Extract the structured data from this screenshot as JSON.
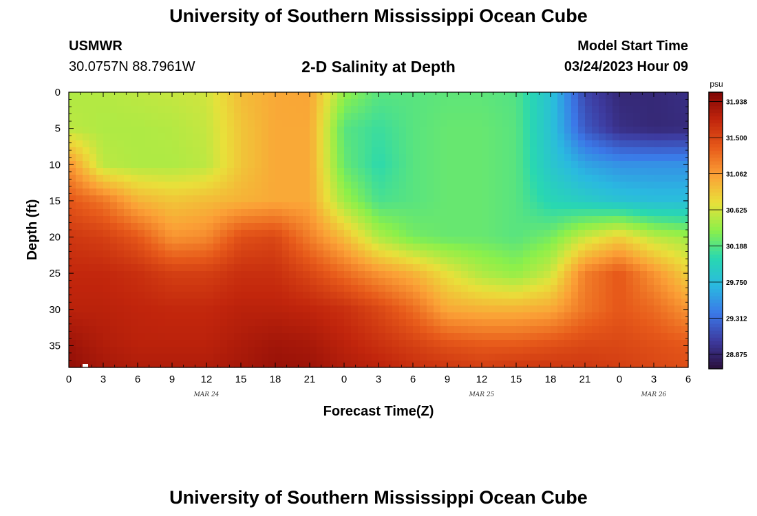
{
  "header": {
    "title": "University of Southern Mississippi Ocean Cube",
    "station": "USMWR",
    "coordinates": "30.0757N  88.7961W",
    "chart_title": "2-D Salinity at Depth",
    "model_start_label": "Model Start Time",
    "model_start_value": "03/24/2023 Hour 09"
  },
  "footer": {
    "title": "University of Southern Mississippi Ocean Cube"
  },
  "chart_data": {
    "type": "heatmap",
    "title": "2-D Salinity at Depth",
    "xlabel": "Forecast Time(Z)",
    "ylabel": "Depth (ft)",
    "x_tick_labels": [
      "0",
      "3",
      "6",
      "9",
      "12",
      "15",
      "18",
      "21",
      "0",
      "3",
      "6",
      "9",
      "12",
      "15",
      "18",
      "21",
      "0",
      "3",
      "6"
    ],
    "x_hours": [
      0,
      3,
      6,
      9,
      12,
      15,
      18,
      21,
      24,
      27,
      30,
      33,
      36,
      39,
      42,
      45,
      48,
      51,
      54
    ],
    "x_range_hours": [
      0,
      54
    ],
    "date_labels": [
      {
        "label": "MAR 24",
        "hour": 12
      },
      {
        "label": "MAR 25",
        "hour": 36
      },
      {
        "label": "MAR 26",
        "hour": 51
      }
    ],
    "y_ticks": [
      0,
      5,
      10,
      15,
      20,
      25,
      30,
      35
    ],
    "y_range_ft": [
      0,
      38
    ],
    "y_inverted": true,
    "colorbar": {
      "unit": "psu",
      "ticks": [
        "31.938",
        "31.500",
        "31.062",
        "30.625",
        "30.188",
        "29.750",
        "29.312",
        "28.875"
      ],
      "range": [
        28.7,
        32.05
      ],
      "colors": [
        "#2a0f3c",
        "#3d3a9e",
        "#3b78e8",
        "#2ab9e0",
        "#29d8b0",
        "#8cf04a",
        "#e9e03a",
        "#fba036",
        "#e75a1a",
        "#c1250c",
        "#7f0505"
      ]
    },
    "layers": [
      {
        "depth_ft": 0,
        "salinity": [
          30.5,
          30.52,
          30.55,
          30.58,
          30.62,
          30.9,
          31.0,
          31.02,
          30.4,
          30.2,
          30.2,
          30.22,
          30.22,
          30.18,
          29.8,
          29.1,
          28.9,
          28.9,
          28.95
        ]
      },
      {
        "depth_ft": 5,
        "salinity": [
          30.55,
          30.5,
          30.5,
          30.52,
          30.58,
          30.85,
          31.0,
          31.0,
          30.2,
          30.1,
          30.2,
          30.25,
          30.25,
          30.2,
          29.8,
          29.2,
          28.95,
          28.9,
          28.92
        ]
      },
      {
        "depth_ft": 10,
        "salinity": [
          31.1,
          30.55,
          30.5,
          30.5,
          30.55,
          30.85,
          31.0,
          31.0,
          30.25,
          30.05,
          30.2,
          30.25,
          30.25,
          30.2,
          29.85,
          29.6,
          29.5,
          29.5,
          29.5
        ]
      },
      {
        "depth_ft": 15,
        "salinity": [
          31.4,
          31.25,
          30.95,
          30.85,
          30.9,
          30.95,
          31.0,
          31.0,
          30.45,
          30.15,
          30.2,
          30.25,
          30.25,
          30.2,
          30.0,
          29.9,
          29.8,
          29.75,
          29.75
        ]
      },
      {
        "depth_ft": 20,
        "salinity": [
          31.6,
          31.55,
          31.4,
          31.1,
          31.15,
          31.45,
          31.5,
          31.2,
          30.9,
          30.5,
          30.3,
          30.25,
          30.25,
          30.2,
          30.3,
          30.6,
          30.8,
          30.55,
          30.45
        ]
      },
      {
        "depth_ft": 25,
        "salinity": [
          31.7,
          31.7,
          31.65,
          31.55,
          31.55,
          31.65,
          31.65,
          31.5,
          31.3,
          31.1,
          30.95,
          30.7,
          30.5,
          30.4,
          30.6,
          31.2,
          31.4,
          31.1,
          30.8
        ]
      },
      {
        "depth_ft": 30,
        "salinity": [
          31.75,
          31.75,
          31.72,
          31.7,
          31.7,
          31.75,
          31.75,
          31.72,
          31.65,
          31.5,
          31.3,
          31.0,
          30.95,
          30.95,
          31.0,
          31.25,
          31.4,
          31.3,
          31.1
        ]
      },
      {
        "depth_ft": 35,
        "salinity": [
          31.9,
          31.8,
          31.75,
          31.75,
          31.75,
          31.82,
          31.88,
          31.85,
          31.75,
          31.65,
          31.55,
          31.45,
          31.4,
          31.4,
          31.45,
          31.5,
          31.5,
          31.45,
          31.4
        ]
      },
      {
        "depth_ft": 38,
        "salinity": [
          31.95,
          31.85,
          31.8,
          31.8,
          31.8,
          31.85,
          31.92,
          31.9,
          31.8,
          31.75,
          31.65,
          31.6,
          31.55,
          31.6,
          31.6,
          31.6,
          31.55,
          31.5,
          31.45
        ]
      }
    ]
  }
}
